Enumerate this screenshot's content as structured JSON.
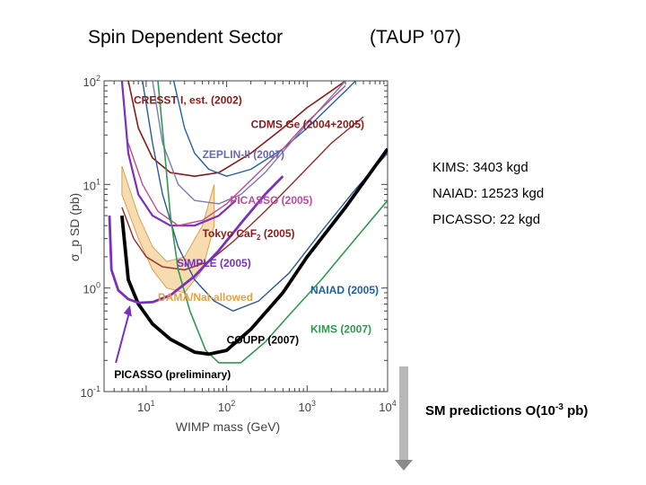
{
  "slide": {
    "title_left": "Spin Dependent Sector",
    "title_right": "(TAUP ’07)",
    "notes": [
      "KIMS: 3403 kgd",
      "NAIAD: 12523 kgd",
      "PICASSO: 22 kgd"
    ],
    "sm_text": "SM predictions O(10",
    "sm_exp": "-3",
    "sm_tail": " pb)",
    "colors": {
      "arrow": "#b8b8b8"
    }
  },
  "chart_data": {
    "type": "line",
    "xscale": "log",
    "yscale": "log",
    "xlabel": "WIMP mass (GeV)",
    "ylabel": "σ_p SD (pb)",
    "xlim": [
      3,
      10000
    ],
    "ylim": [
      0.1,
      100
    ],
    "x_ticks": [
      {
        "base": "10",
        "exp": "1",
        "value": 10
      },
      {
        "base": "10",
        "exp": "2",
        "value": 100
      },
      {
        "base": "10",
        "exp": "3",
        "value": 1000
      },
      {
        "base": "10",
        "exp": "4",
        "value": 10000
      }
    ],
    "y_ticks": [
      {
        "base": "10",
        "exp": "-1",
        "value": 0.1
      },
      {
        "base": "10",
        "exp": "0",
        "value": 1
      },
      {
        "base": "10",
        "exp": "1",
        "value": 10
      },
      {
        "base": "10",
        "exp": "2",
        "value": 100
      }
    ],
    "dama_region": {
      "label": "DAMA/NaI-allowed",
      "color": "#f0c070",
      "upper": [
        [
          5,
          15
        ],
        [
          8,
          5
        ],
        [
          12,
          2.5
        ],
        [
          18,
          1.8
        ],
        [
          30,
          2.0
        ],
        [
          50,
          4.0
        ],
        [
          70,
          10
        ]
      ],
      "lower": [
        [
          70,
          4.0
        ],
        [
          50,
          1.5
        ],
        [
          30,
          0.9
        ],
        [
          18,
          1.0
        ],
        [
          12,
          1.5
        ],
        [
          8,
          3.0
        ],
        [
          5,
          8
        ]
      ]
    },
    "series": [
      {
        "name": "CRESST I, est. (2002)",
        "color": "#8b1a1a",
        "width": 1.6,
        "label_pos": [
          7,
          60
        ],
        "label_color": "#8b1a1a",
        "points": [
          [
            6,
            100
          ],
          [
            8,
            35
          ],
          [
            12,
            18
          ],
          [
            20,
            13
          ],
          [
            40,
            12
          ],
          [
            80,
            13
          ],
          [
            200,
            20
          ],
          [
            500,
            35
          ],
          [
            1000,
            55
          ],
          [
            2000,
            80
          ],
          [
            3000,
            100
          ]
        ]
      },
      {
        "name": "CDMS Ge (2004+2005)",
        "color": "#1f5faa",
        "width": 1.4,
        "label_pos": [
          200,
          35
        ],
        "label_color": "#8b1a1a",
        "points": [
          [
            22,
            100
          ],
          [
            30,
            35
          ],
          [
            40,
            20
          ],
          [
            60,
            14
          ],
          [
            100,
            12
          ],
          [
            200,
            14
          ],
          [
            500,
            22
          ],
          [
            1000,
            35
          ],
          [
            3000,
            80
          ],
          [
            4000,
            100
          ]
        ]
      },
      {
        "name": "ZEPLIN-II (2007)",
        "color": "#7a7ab8",
        "width": 1.4,
        "label_pos": [
          50,
          18
        ],
        "label_color": "#6a6ab0",
        "points": [
          [
            12,
            100
          ],
          [
            16,
            25
          ],
          [
            25,
            10
          ],
          [
            40,
            7
          ],
          [
            80,
            6.5
          ],
          [
            150,
            8
          ],
          [
            300,
            13
          ],
          [
            700,
            28
          ],
          [
            1500,
            55
          ],
          [
            3000,
            100
          ]
        ]
      },
      {
        "name": "PICASSO (2005)",
        "color": "#7b2fbe",
        "width": 2.2,
        "label_pos": [
          110,
          6.5
        ],
        "label_color": "#c04a9a",
        "points": [
          [
            5,
            100
          ],
          [
            6,
            20
          ],
          [
            8,
            8
          ],
          [
            12,
            5
          ],
          [
            20,
            4
          ],
          [
            40,
            4
          ],
          [
            80,
            5
          ],
          [
            130,
            7
          ]
        ]
      },
      {
        "name": "Tokyo CaF2 (2005)",
        "color": "#c04a8a",
        "width": 1.4,
        "label_pos": [
          50,
          3.1
        ],
        "label_color": "#8b1a1a",
        "points": [
          [
            6,
            25
          ],
          [
            9,
            10
          ],
          [
            14,
            5.5
          ],
          [
            25,
            4
          ],
          [
            50,
            4.5
          ],
          [
            100,
            6.5
          ],
          [
            200,
            11
          ],
          [
            500,
            22
          ],
          [
            1000,
            40
          ],
          [
            3000,
            90
          ]
        ]
      },
      {
        "name": "SIMPLE (2005)",
        "color": "#9b2a2a",
        "width": 1.4,
        "label_pos": [
          24,
          1.6
        ],
        "label_color": "#7b2fbe",
        "points": [
          [
            5,
            6
          ],
          [
            7,
            3
          ],
          [
            10,
            2
          ],
          [
            16,
            1.6
          ],
          [
            30,
            1.5
          ],
          [
            60,
            1.8
          ],
          [
            120,
            2.8
          ],
          [
            300,
            5.5
          ],
          [
            800,
            12
          ],
          [
            2000,
            25
          ],
          [
            5000,
            45
          ]
        ]
      },
      {
        "name": "NAIAD (2005)",
        "color": "#2a5a9a",
        "width": 1.4,
        "label_pos": [
          1100,
          0.88
        ],
        "label_color": "#1f5faa",
        "points": [
          [
            9,
            100
          ],
          [
            12,
            25
          ],
          [
            16,
            8
          ],
          [
            25,
            2.5
          ],
          [
            40,
            1.2
          ],
          [
            70,
            0.75
          ],
          [
            120,
            0.6
          ],
          [
            250,
            0.75
          ],
          [
            600,
            1.4
          ],
          [
            1500,
            3.5
          ],
          [
            4000,
            9
          ],
          [
            10000,
            20
          ]
        ]
      },
      {
        "name": "KIMS (2007)",
        "color": "#2e9a4e",
        "width": 1.6,
        "label_pos": [
          1100,
          0.37
        ],
        "label_color": "#2e9a4e",
        "points": [
          [
            14,
            100
          ],
          [
            17,
            20
          ],
          [
            20,
            5
          ],
          [
            25,
            1.5
          ],
          [
            35,
            0.6
          ],
          [
            55,
            0.25
          ],
          [
            80,
            0.19
          ],
          [
            150,
            0.19
          ],
          [
            300,
            0.3
          ],
          [
            600,
            0.55
          ],
          [
            1500,
            1.2
          ],
          [
            4000,
            3
          ],
          [
            10000,
            7
          ]
        ]
      },
      {
        "name": "COUPP (2007)",
        "color": "#000000",
        "width": 3.8,
        "label_pos": [
          100,
          0.29
        ],
        "label_color": "#000000",
        "points": [
          [
            5,
            5
          ],
          [
            6,
            1.2
          ],
          [
            8,
            0.7
          ],
          [
            12,
            0.45
          ],
          [
            20,
            0.32
          ],
          [
            40,
            0.24
          ],
          [
            60,
            0.23
          ],
          [
            100,
            0.25
          ],
          [
            200,
            0.4
          ],
          [
            500,
            0.9
          ],
          [
            1000,
            2
          ],
          [
            3000,
            6
          ],
          [
            10000,
            22
          ]
        ]
      },
      {
        "name": "PICASSO (preliminary)",
        "color": "#7b2fbe",
        "width": 2.8,
        "label_pos": [
          4,
          0.135
        ],
        "label_color": "#000000",
        "points": [
          [
            3.5,
            5
          ],
          [
            3.7,
            1.5
          ],
          [
            4.5,
            0.95
          ],
          [
            6,
            0.78
          ],
          [
            8,
            0.72
          ],
          [
            12,
            0.73
          ],
          [
            20,
            0.85
          ],
          [
            40,
            1.3
          ],
          [
            80,
            2.3
          ],
          [
            150,
            4.2
          ],
          [
            300,
            8
          ],
          [
            500,
            12
          ]
        ]
      }
    ],
    "annotations": [
      {
        "text": "DAMA/NaI-allowed",
        "pos": [
          14,
          0.75
        ],
        "color": "#e8a040"
      }
    ]
  }
}
